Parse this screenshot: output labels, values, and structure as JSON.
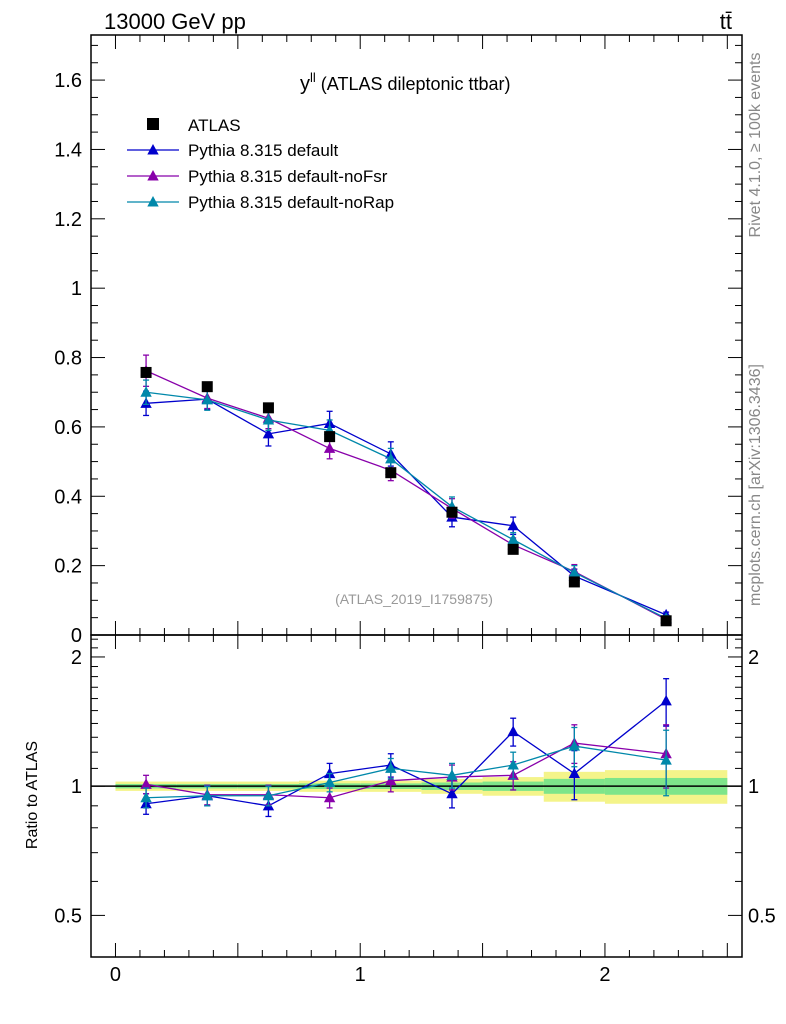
{
  "header": {
    "left_label": "13000 GeV pp",
    "right_label": "tt̄"
  },
  "side_labels": {
    "rivet": "Rivet 4.1.0, ≥ 100k events",
    "mcplots": "mcplots.cern.ch [arXiv:1306.3436]"
  },
  "chart_data": [
    {
      "type": "scatter",
      "panel": "main",
      "title_main": "y",
      "title_sup": "ll",
      "title_rest": " (ATLAS dileptonic ttbar)",
      "watermark": "(ATLAS_2019_I1759875)",
      "xlim": [
        -0.1,
        2.56
      ],
      "ylim": [
        0,
        1.73
      ],
      "yticks": [
        0,
        0.2,
        0.4,
        0.6,
        0.8,
        1,
        1.2,
        1.4,
        1.6
      ],
      "ytick_labels": [
        "0",
        "0.2",
        "0.4",
        "0.6",
        "0.8",
        "1",
        "1.2",
        "1.4",
        "1.6"
      ],
      "x": [
        0.125,
        0.375,
        0.625,
        0.875,
        1.125,
        1.375,
        1.625,
        1.875,
        2.25
      ],
      "data": {
        "name": "ATLAS",
        "color": "#000000",
        "values": [
          0.757,
          0.716,
          0.655,
          0.572,
          0.468,
          0.354,
          0.247,
          0.153,
          0.041
        ]
      },
      "series": [
        {
          "name": "Pythia 8.315 default",
          "color": "#0000cc",
          "values": [
            0.668,
            0.68,
            0.58,
            0.61,
            0.522,
            0.34,
            0.315,
            0.17,
            0.058
          ],
          "errors": [
            0.035,
            0.03,
            0.035,
            0.035,
            0.035,
            0.028,
            0.025,
            0.02,
            0.008
          ]
        },
        {
          "name": "Pythia 8.315 default-noFsr",
          "color": "#8800aa",
          "values": [
            0.762,
            0.683,
            0.625,
            0.538,
            0.475,
            0.365,
            0.26,
            0.183,
            0.045
          ],
          "errors": [
            0.045,
            0.03,
            0.03,
            0.03,
            0.03,
            0.028,
            0.02,
            0.02,
            0.008
          ]
        },
        {
          "name": "Pythia 8.315 default-noRap",
          "color": "#0088aa",
          "values": [
            0.7,
            0.678,
            0.62,
            0.59,
            0.508,
            0.37,
            0.275,
            0.18,
            0.048
          ],
          "errors": [
            0.035,
            0.03,
            0.03,
            0.03,
            0.03,
            0.028,
            0.02,
            0.02,
            0.008
          ]
        }
      ]
    },
    {
      "type": "scatter",
      "panel": "ratio",
      "ylabel": "Ratio to ATLAS",
      "ylim": [
        0.4,
        2.25
      ],
      "yticks": [
        0.5,
        1,
        2
      ],
      "ytick_labels": [
        "0.5",
        "1",
        "2"
      ],
      "xticks": [
        0,
        1,
        2
      ],
      "xtick_labels": [
        "0",
        "1",
        "2"
      ],
      "x": [
        0.125,
        0.375,
        0.625,
        0.875,
        1.125,
        1.375,
        1.625,
        1.875,
        2.25
      ],
      "band_edges": [
        0,
        0.25,
        0.5,
        0.75,
        1,
        1.25,
        1.5,
        1.75,
        2,
        2.5
      ],
      "band_inner": [
        0.012,
        0.012,
        0.012,
        0.015,
        0.015,
        0.02,
        0.025,
        0.04,
        0.045
      ],
      "band_outer": [
        0.025,
        0.025,
        0.025,
        0.03,
        0.03,
        0.04,
        0.05,
        0.08,
        0.09
      ],
      "series": [
        {
          "name": "Pythia 8.315 default",
          "color": "#0000cc",
          "values": [
            0.91,
            0.95,
            0.9,
            1.07,
            1.12,
            0.96,
            1.34,
            1.07,
            1.58
          ],
          "errors": [
            0.05,
            0.05,
            0.05,
            0.06,
            0.07,
            0.07,
            0.1,
            0.14,
            0.2
          ]
        },
        {
          "name": "Pythia 8.315 default-noFsr",
          "color": "#8800aa",
          "values": [
            1.01,
            0.955,
            0.955,
            0.94,
            1.03,
            1.05,
            1.06,
            1.26,
            1.19
          ],
          "errors": [
            0.05,
            0.05,
            0.05,
            0.05,
            0.06,
            0.07,
            0.08,
            0.13,
            0.2
          ]
        },
        {
          "name": "Pythia 8.315 default-noRap",
          "color": "#0088aa",
          "values": [
            0.94,
            0.95,
            0.95,
            1.02,
            1.1,
            1.06,
            1.12,
            1.24,
            1.15
          ],
          "errors": [
            0.05,
            0.05,
            0.05,
            0.05,
            0.06,
            0.07,
            0.08,
            0.13,
            0.2
          ]
        }
      ]
    }
  ]
}
